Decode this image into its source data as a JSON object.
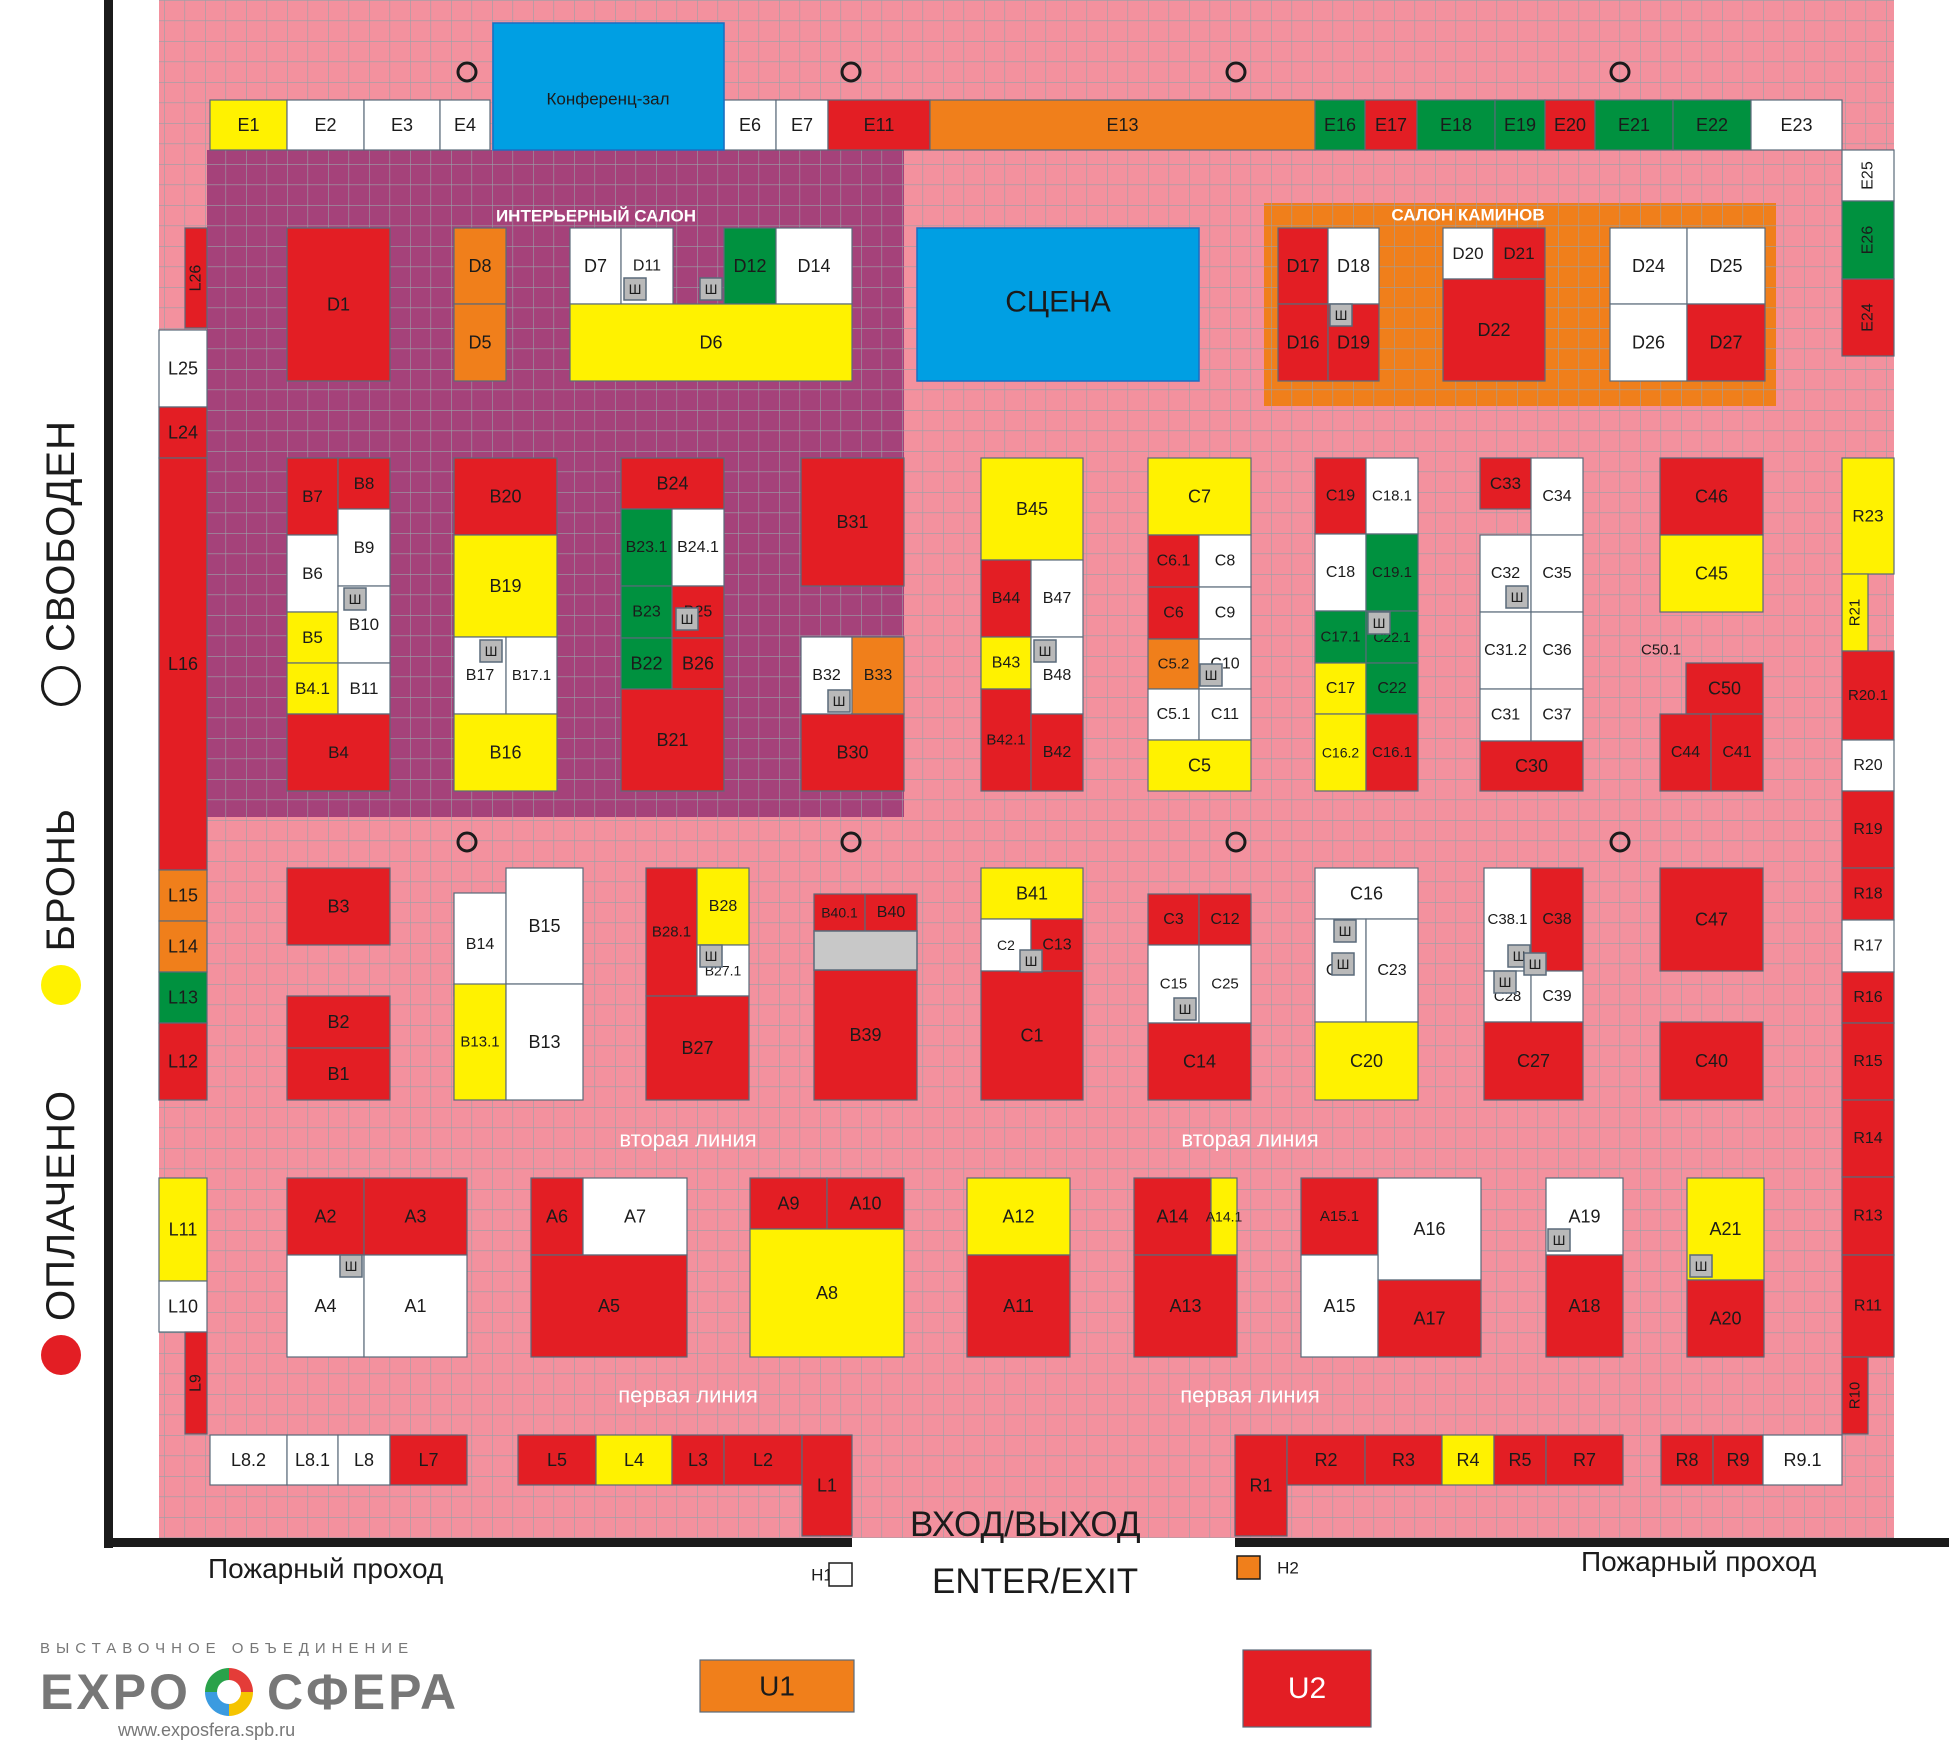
{
  "legend": {
    "paid": "ОПЛАЧЕНО",
    "reserved": "БРОНЬ",
    "free": "СВОБОДЕН"
  },
  "labels": {
    "interior_salon": "ИНТЕРЬЕРНЫЙ САЛОН",
    "fireplace_salon": "САЛОН КАМИНОВ",
    "second_line": "вторая линия",
    "first_line": "первая линия",
    "entrance_ru": "ВХОД/ВЫХОД",
    "entrance_en": "ENTER/EXIT",
    "fire_passage": "Пожарный проход",
    "conference": "Конференц-зал",
    "stage": "СЦЕНА",
    "h1": "H1",
    "h2": "H2"
  },
  "logo": {
    "top": "ВЫСТАВОЧНОЕ ОБЪЕДИНЕНИЕ",
    "left": "EXPO",
    "right": "СФЕРА",
    "url": "www.exposfera.spb.ru"
  },
  "colors": {
    "paid": "#e31e24",
    "reserved": "#fff200",
    "free": "#ffffff",
    "orange": "#f07f1b",
    "green": "#00913f",
    "blue": "#009fe3",
    "floor": "#f3919e",
    "salon": "#a5427a",
    "salon_orange": "#f07f1b",
    "booth_line": "#1b6ec2"
  },
  "stands": [
    [
      "E1",
      "reserved"
    ],
    [
      "E2",
      "free"
    ],
    [
      "E3",
      "free"
    ],
    [
      "E4",
      "free"
    ],
    [
      "E6",
      "free"
    ],
    [
      "E7",
      "free"
    ],
    [
      "E11",
      "paid"
    ],
    [
      "E13",
      "orange"
    ],
    [
      "E16",
      "green"
    ],
    [
      "E17",
      "paid"
    ],
    [
      "E18",
      "green"
    ],
    [
      "E19",
      "green"
    ],
    [
      "E20",
      "paid"
    ],
    [
      "E21",
      "green"
    ],
    [
      "E22",
      "green"
    ],
    [
      "E23",
      "free"
    ],
    [
      "E25",
      "free"
    ],
    [
      "E26",
      "green"
    ],
    [
      "E24",
      "paid"
    ],
    [
      "L26",
      "paid"
    ],
    [
      "L25",
      "free"
    ],
    [
      "L24",
      "paid"
    ],
    [
      "L16",
      "paid"
    ],
    [
      "L15",
      "orange"
    ],
    [
      "L14",
      "orange"
    ],
    [
      "L13",
      "green"
    ],
    [
      "L12",
      "paid"
    ],
    [
      "L11",
      "reserved"
    ],
    [
      "L10",
      "free"
    ],
    [
      "L9",
      "paid"
    ],
    [
      "L8.2",
      "free"
    ],
    [
      "L8.1",
      "free"
    ],
    [
      "L8",
      "free"
    ],
    [
      "L7",
      "paid"
    ],
    [
      "L5",
      "paid"
    ],
    [
      "L4",
      "reserved"
    ],
    [
      "L3",
      "paid"
    ],
    [
      "L2",
      "paid"
    ],
    [
      "L1",
      "paid"
    ],
    [
      "D1",
      "paid"
    ],
    [
      "D8",
      "orange"
    ],
    [
      "D5",
      "orange"
    ],
    [
      "D7",
      "free"
    ],
    [
      "D11",
      "free"
    ],
    [
      "D12",
      "green"
    ],
    [
      "D14",
      "free"
    ],
    [
      "D6",
      "reserved"
    ],
    [
      "D17",
      "paid"
    ],
    [
      "D18",
      "free"
    ],
    [
      "D16",
      "paid"
    ],
    [
      "D19",
      "paid"
    ],
    [
      "D20",
      "free"
    ],
    [
      "D21",
      "paid"
    ],
    [
      "D22",
      "paid"
    ],
    [
      "D24",
      "free"
    ],
    [
      "D25",
      "free"
    ],
    [
      "D26",
      "free"
    ],
    [
      "D27",
      "paid"
    ],
    [
      "B7",
      "paid"
    ],
    [
      "B8",
      "paid"
    ],
    [
      "B6",
      "free"
    ],
    [
      "B9",
      "free"
    ],
    [
      "B5",
      "reserved"
    ],
    [
      "B10",
      "free"
    ],
    [
      "B4.1",
      "reserved"
    ],
    [
      "B11",
      "free"
    ],
    [
      "B4",
      "paid"
    ],
    [
      "B20",
      "paid"
    ],
    [
      "B19",
      "reserved"
    ],
    [
      "B17",
      "free"
    ],
    [
      "B17.1",
      "free"
    ],
    [
      "B16",
      "reserved"
    ],
    [
      "B24",
      "paid"
    ],
    [
      "B23.1",
      "green"
    ],
    [
      "B24.1",
      "free"
    ],
    [
      "B23",
      "green"
    ],
    [
      "B25",
      "paid"
    ],
    [
      "B22",
      "green"
    ],
    [
      "B26",
      "paid"
    ],
    [
      "B21",
      "paid"
    ],
    [
      "B31",
      "paid"
    ],
    [
      "B32",
      "free"
    ],
    [
      "B33",
      "orange"
    ],
    [
      "B30",
      "paid"
    ],
    [
      "B45",
      "reserved"
    ],
    [
      "B44",
      "paid"
    ],
    [
      "B47",
      "free"
    ],
    [
      "B43",
      "reserved"
    ],
    [
      "B48",
      "free"
    ],
    [
      "B42.1",
      "paid"
    ],
    [
      "B42",
      "paid"
    ],
    [
      "C7",
      "reserved"
    ],
    [
      "C6.1",
      "paid"
    ],
    [
      "C8",
      "free"
    ],
    [
      "C6",
      "paid"
    ],
    [
      "C9",
      "free"
    ],
    [
      "C5.2",
      "orange"
    ],
    [
      "C10",
      "free"
    ],
    [
      "C5.1",
      "free"
    ],
    [
      "C11",
      "free"
    ],
    [
      "C5",
      "reserved"
    ],
    [
      "C19",
      "paid"
    ],
    [
      "C18.1",
      "free"
    ],
    [
      "C18",
      "free"
    ],
    [
      "C19.1",
      "green"
    ],
    [
      "C17.1",
      "green"
    ],
    [
      "C22.1",
      "green"
    ],
    [
      "C17",
      "reserved"
    ],
    [
      "C22",
      "green"
    ],
    [
      "C16.2",
      "reserved"
    ],
    [
      "C16.1",
      "paid"
    ],
    [
      "C33",
      "paid"
    ],
    [
      "C34",
      "free"
    ],
    [
      "C32",
      "free"
    ],
    [
      "C35",
      "free"
    ],
    [
      "C31.2",
      "free"
    ],
    [
      "C36",
      "free"
    ],
    [
      "C31",
      "free"
    ],
    [
      "C37",
      "free"
    ],
    [
      "C30",
      "paid"
    ],
    [
      "C46",
      "paid"
    ],
    [
      "C45",
      "reserved"
    ],
    [
      "C50",
      "paid"
    ],
    [
      "C44",
      "paid"
    ],
    [
      "C41",
      "paid"
    ],
    [
      "C50.1",
      "free"
    ],
    [
      "R23",
      "reserved"
    ],
    [
      "R21",
      "reserved"
    ],
    [
      "R20.1",
      "paid"
    ],
    [
      "R20",
      "free"
    ],
    [
      "R19",
      "paid"
    ],
    [
      "R18",
      "paid"
    ],
    [
      "R17",
      "free"
    ],
    [
      "R16",
      "paid"
    ],
    [
      "R15",
      "paid"
    ],
    [
      "R14",
      "paid"
    ],
    [
      "R13",
      "paid"
    ],
    [
      "R11",
      "paid"
    ],
    [
      "R10",
      "paid"
    ],
    [
      "B3",
      "paid"
    ],
    [
      "B2",
      "paid"
    ],
    [
      "B1",
      "paid"
    ],
    [
      "B14",
      "free"
    ],
    [
      "B15",
      "free"
    ],
    [
      "B13.1",
      "reserved"
    ],
    [
      "B13",
      "free"
    ],
    [
      "B28.1",
      "paid"
    ],
    [
      "B28",
      "reserved"
    ],
    [
      "B27.1",
      "free"
    ],
    [
      "B27",
      "paid"
    ],
    [
      "B40.1",
      "paid"
    ],
    [
      "B40",
      "paid"
    ],
    [
      "B39",
      "paid"
    ],
    [
      "B41",
      "reserved"
    ],
    [
      "C2",
      "free"
    ],
    [
      "C13",
      "paid"
    ],
    [
      "C1",
      "paid"
    ],
    [
      "C3",
      "paid"
    ],
    [
      "C12",
      "paid"
    ],
    [
      "C15",
      "free"
    ],
    [
      "C25",
      "free"
    ],
    [
      "C14",
      "paid"
    ],
    [
      "C16",
      "free"
    ],
    [
      "C21",
      "free"
    ],
    [
      "C23",
      "free"
    ],
    [
      "C20",
      "reserved"
    ],
    [
      "C38.1",
      "free"
    ],
    [
      "C38",
      "paid"
    ],
    [
      "C28",
      "free"
    ],
    [
      "C39",
      "free"
    ],
    [
      "C27",
      "paid"
    ],
    [
      "C47",
      "paid"
    ],
    [
      "C40",
      "paid"
    ],
    [
      "A2",
      "paid"
    ],
    [
      "A3",
      "paid"
    ],
    [
      "A4",
      "free"
    ],
    [
      "A1",
      "free"
    ],
    [
      "A6",
      "paid"
    ],
    [
      "A7",
      "free"
    ],
    [
      "A5",
      "paid"
    ],
    [
      "A9",
      "paid"
    ],
    [
      "A10",
      "paid"
    ],
    [
      "A8",
      "reserved"
    ],
    [
      "A12",
      "reserved"
    ],
    [
      "A11",
      "paid"
    ],
    [
      "A14",
      "paid"
    ],
    [
      "A14.1",
      "reserved"
    ],
    [
      "A13",
      "paid"
    ],
    [
      "A15.1",
      "paid"
    ],
    [
      "A16",
      "free"
    ],
    [
      "A15",
      "free"
    ],
    [
      "A17",
      "paid"
    ],
    [
      "A19",
      "free"
    ],
    [
      "A18",
      "paid"
    ],
    [
      "A21",
      "reserved"
    ],
    [
      "A20",
      "paid"
    ],
    [
      "R1",
      "paid"
    ],
    [
      "R2",
      "paid"
    ],
    [
      "R3",
      "paid"
    ],
    [
      "R4",
      "reserved"
    ],
    [
      "R5",
      "paid"
    ],
    [
      "R7",
      "paid"
    ],
    [
      "R8",
      "paid"
    ],
    [
      "R9",
      "paid"
    ],
    [
      "R9.1",
      "free"
    ],
    [
      "U1",
      "orange"
    ],
    [
      "U2",
      "paid"
    ]
  ],
  "cabinet": "Ш"
}
